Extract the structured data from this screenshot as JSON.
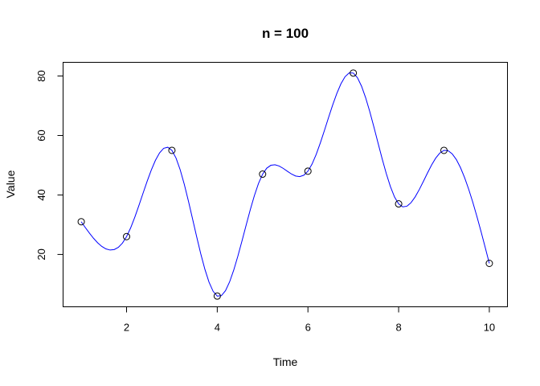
{
  "chart_data": {
    "type": "line",
    "title": "n = 100",
    "xlabel": "Time",
    "ylabel": "Value",
    "xlim": [
      0.6,
      10.4
    ],
    "ylim": [
      2.4,
      84.6
    ],
    "x_ticks": [
      2,
      4,
      6,
      8,
      10
    ],
    "y_ticks": [
      20,
      40,
      60,
      80
    ],
    "grid": false,
    "points": {
      "x": [
        1,
        2,
        3,
        4,
        5,
        6,
        7,
        8,
        9,
        10
      ],
      "y": [
        31,
        26,
        55,
        6,
        47,
        48,
        81,
        37,
        55,
        17
      ]
    },
    "spline": {
      "n": 100,
      "color": "#0000ff"
    }
  }
}
